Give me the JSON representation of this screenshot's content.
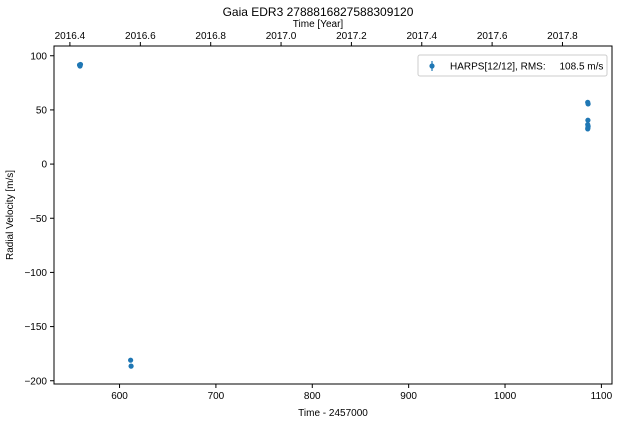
{
  "chart_data": {
    "type": "scatter",
    "title": "Gaia EDR3 2788816827588309120",
    "xlabel": "Time - 2457000",
    "ylabel": "Radial Velocity [m/s]",
    "top_xlabel": "Time [Year]",
    "xlim": [
      532,
      1111
    ],
    "ylim": [
      -203,
      109
    ],
    "xticks": [
      600,
      700,
      800,
      900,
      1000,
      1100
    ],
    "yticks": [
      100,
      50,
      0,
      -50,
      -100,
      -150,
      -200
    ],
    "top_xticks": [
      {
        "label": "2016.4",
        "x": 548.5
      },
      {
        "label": "2016.6",
        "x": 621.6
      },
      {
        "label": "2016.8",
        "x": 694.6
      },
      {
        "label": "2017.0",
        "x": 767.6
      },
      {
        "label": "2017.2",
        "x": 840.6
      },
      {
        "label": "2017.4",
        "x": 913.6
      },
      {
        "label": "2017.6",
        "x": 986.6
      },
      {
        "label": "2017.8",
        "x": 1059.6
      }
    ],
    "grid": false,
    "legend_position": "top-right",
    "series": [
      {
        "name": "HARPS[12/12], RMS:     108.5 m/s",
        "color": "#1f77b4",
        "points": [
          {
            "x": 558.5,
            "y": 91.5,
            "err": 1.2
          },
          {
            "x": 559.0,
            "y": 90.5,
            "err": 1.2
          },
          {
            "x": 559.5,
            "y": 92.0,
            "err": 1.2
          },
          {
            "x": 611.5,
            "y": -181.0,
            "err": 1.2
          },
          {
            "x": 612.0,
            "y": -186.5,
            "err": 1.2
          },
          {
            "x": 1085.8,
            "y": 57.0,
            "err": 1.2
          },
          {
            "x": 1086.2,
            "y": 55.5,
            "err": 1.2
          },
          {
            "x": 1086.0,
            "y": 40.5,
            "err": 1.2
          },
          {
            "x": 1085.8,
            "y": 36.5,
            "err": 1.2
          },
          {
            "x": 1086.2,
            "y": 35.0,
            "err": 1.2
          },
          {
            "x": 1086.0,
            "y": 33.5,
            "err": 1.2
          },
          {
            "x": 1085.8,
            "y": 32.5,
            "err": 1.2
          }
        ]
      }
    ]
  }
}
